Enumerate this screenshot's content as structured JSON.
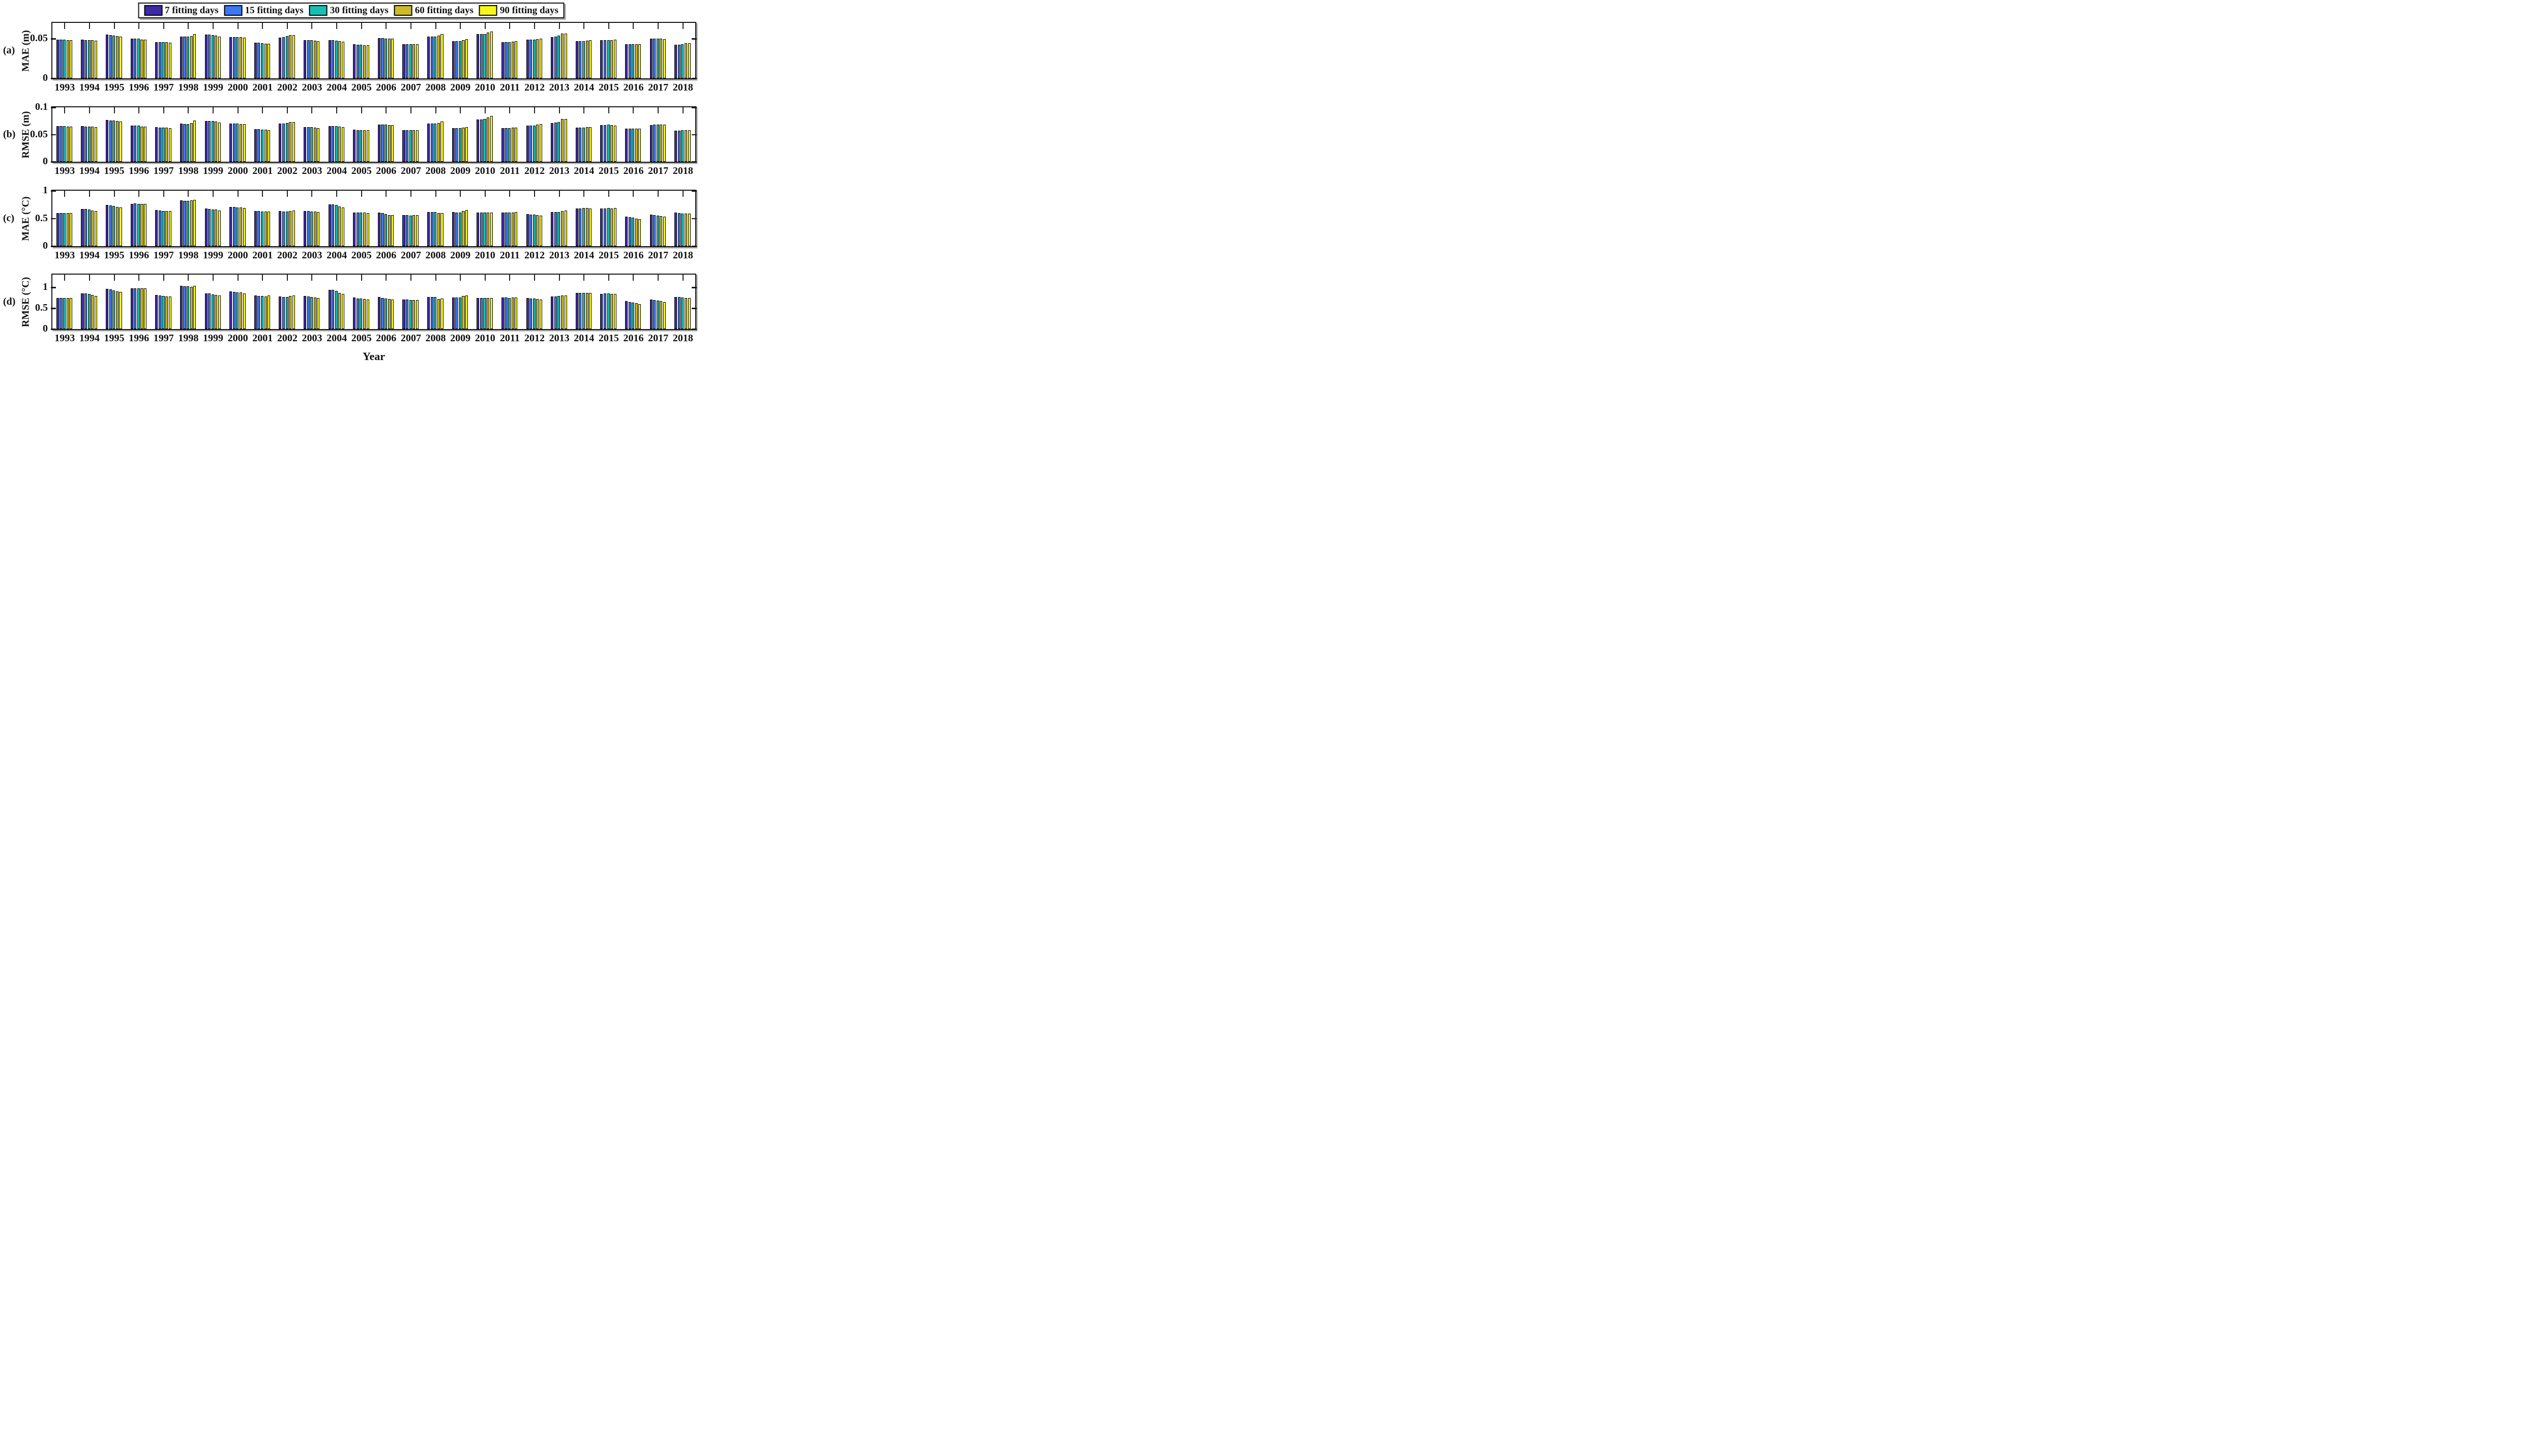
{
  "figure": {
    "xlabel": "Year"
  },
  "legend": {
    "items": [
      {
        "label": "7 fitting days",
        "color": "#3e2ba6"
      },
      {
        "label": "15 fitting days",
        "color": "#3b78f2"
      },
      {
        "label": "30 fitting days",
        "color": "#18bfb4"
      },
      {
        "label": "60 fitting days",
        "color": "#cdbb2a"
      },
      {
        "label": "90 fitting days",
        "color": "#f6f618"
      }
    ]
  },
  "panels": [
    {
      "tag": "(a)",
      "ylabel": "MAE (m)",
      "yticks": [
        {
          "value": 0,
          "label": "0"
        },
        {
          "value": 0.05,
          "label": "0.05"
        }
      ]
    },
    {
      "tag": "(b)",
      "ylabel": "RMSE (m)",
      "yticks": [
        {
          "value": 0,
          "label": "0"
        },
        {
          "value": 0.05,
          "label": "0.05"
        },
        {
          "value": 0.1,
          "label": "0.1"
        }
      ]
    },
    {
      "tag": "(c)",
      "ylabel": "MAE (°C)",
      "yticks": [
        {
          "value": 0,
          "label": "0"
        },
        {
          "value": 0.5,
          "label": "0.5"
        },
        {
          "value": 1,
          "label": "1"
        }
      ]
    },
    {
      "tag": "(d)",
      "ylabel": "RMSE (°C)",
      "yticks": [
        {
          "value": 0,
          "label": "0"
        },
        {
          "value": 0.5,
          "label": "0.5"
        },
        {
          "value": 1,
          "label": "1"
        }
      ]
    }
  ],
  "chart_data": [
    {
      "type": "bar",
      "panel": "(a)",
      "ylabel": "MAE (m)",
      "xlabel": "Year",
      "ylim": [
        0,
        0.07
      ],
      "grid": false,
      "legend_position": "top",
      "categories": [
        1993,
        1994,
        1995,
        1996,
        1997,
        1998,
        1999,
        2000,
        2001,
        2002,
        2003,
        2004,
        2005,
        2006,
        2007,
        2008,
        2009,
        2010,
        2011,
        2012,
        2013,
        2014,
        2015,
        2016,
        2017,
        2018
      ],
      "series": [
        {
          "name": "7 fitting days",
          "values": [
            0.049,
            0.0486,
            0.055,
            0.0502,
            0.0459,
            0.0524,
            0.0553,
            0.0521,
            0.0452,
            0.0513,
            0.0482,
            0.0482,
            0.043,
            0.0505,
            0.043,
            0.0524,
            0.0466,
            0.0557,
            0.0453,
            0.049,
            0.0521,
            0.047,
            0.048,
            0.0433,
            0.0503,
            0.0421
          ]
        },
        {
          "name": "15 fitting days",
          "values": [
            0.0488,
            0.0484,
            0.0545,
            0.05,
            0.0456,
            0.0524,
            0.0552,
            0.052,
            0.0449,
            0.0517,
            0.0481,
            0.0484,
            0.0424,
            0.0505,
            0.043,
            0.0525,
            0.0469,
            0.0558,
            0.0455,
            0.049,
            0.0528,
            0.047,
            0.0481,
            0.0432,
            0.0503,
            0.0423
          ]
        },
        {
          "name": "30 fitting days",
          "values": [
            0.0486,
            0.0483,
            0.0539,
            0.0498,
            0.0455,
            0.0526,
            0.0549,
            0.0519,
            0.0444,
            0.0533,
            0.0479,
            0.0476,
            0.0421,
            0.0503,
            0.0428,
            0.0527,
            0.0472,
            0.056,
            0.0458,
            0.0491,
            0.054,
            0.0472,
            0.0483,
            0.0432,
            0.0503,
            0.043
          ]
        },
        {
          "name": "60 fitting days",
          "values": [
            0.0484,
            0.0482,
            0.0531,
            0.049,
            0.0454,
            0.0532,
            0.0537,
            0.0518,
            0.0439,
            0.0547,
            0.0476,
            0.0468,
            0.0419,
            0.05,
            0.043,
            0.0537,
            0.0481,
            0.0578,
            0.0464,
            0.0495,
            0.0565,
            0.0478,
            0.0483,
            0.043,
            0.05,
            0.044
          ]
        },
        {
          "name": "90 fitting days",
          "values": [
            0.0484,
            0.0476,
            0.0524,
            0.0486,
            0.0451,
            0.0558,
            0.0528,
            0.0516,
            0.0435,
            0.0548,
            0.0472,
            0.0462,
            0.0417,
            0.05,
            0.0432,
            0.0556,
            0.0497,
            0.059,
            0.0471,
            0.05,
            0.0568,
            0.048,
            0.0485,
            0.043,
            0.0497,
            0.0445
          ]
        }
      ]
    },
    {
      "type": "bar",
      "panel": "(b)",
      "ylabel": "RMSE (m)",
      "xlabel": "Year",
      "ylim": [
        0,
        0.1
      ],
      "grid": false,
      "legend_position": "top",
      "categories": [
        1993,
        1994,
        1995,
        1996,
        1997,
        1998,
        1999,
        2000,
        2001,
        2002,
        2003,
        2004,
        2005,
        2006,
        2007,
        2008,
        2009,
        2010,
        2011,
        2012,
        2013,
        2014,
        2015,
        2016,
        2017,
        2018
      ],
      "series": [
        {
          "name": "7 fitting days",
          "values": [
            0.0655,
            0.065,
            0.0771,
            0.0668,
            0.0634,
            0.0697,
            0.0752,
            0.0702,
            0.0601,
            0.0699,
            0.0639,
            0.0655,
            0.0585,
            0.0681,
            0.0579,
            0.0701,
            0.0616,
            0.0779,
            0.0616,
            0.0666,
            0.0714,
            0.0626,
            0.0676,
            0.0605,
            0.0677,
            0.0566
          ]
        },
        {
          "name": "15 fitting days",
          "values": [
            0.0652,
            0.0648,
            0.0761,
            0.0665,
            0.0629,
            0.0696,
            0.075,
            0.07,
            0.0598,
            0.07,
            0.0638,
            0.0653,
            0.0581,
            0.068,
            0.0579,
            0.0702,
            0.0616,
            0.0778,
            0.0617,
            0.0666,
            0.0718,
            0.0628,
            0.0677,
            0.0606,
            0.0678,
            0.0568
          ]
        },
        {
          "name": "30 fitting days",
          "values": [
            0.065,
            0.0646,
            0.0753,
            0.0661,
            0.0627,
            0.0696,
            0.0748,
            0.0698,
            0.0593,
            0.0711,
            0.0635,
            0.065,
            0.0579,
            0.0678,
            0.0578,
            0.0704,
            0.0618,
            0.0781,
            0.0619,
            0.0664,
            0.0733,
            0.0629,
            0.0678,
            0.0606,
            0.0679,
            0.0578
          ]
        },
        {
          "name": "60 fitting days",
          "values": [
            0.0647,
            0.0644,
            0.0747,
            0.0646,
            0.0625,
            0.0709,
            0.0734,
            0.0694,
            0.0586,
            0.0733,
            0.0628,
            0.0641,
            0.0579,
            0.0676,
            0.058,
            0.0711,
            0.0628,
            0.0812,
            0.0622,
            0.0679,
            0.0782,
            0.0634,
            0.0671,
            0.0605,
            0.0681,
            0.0582
          ]
        },
        {
          "name": "90 fitting days",
          "values": [
            0.0647,
            0.0632,
            0.0742,
            0.0641,
            0.0619,
            0.0755,
            0.0719,
            0.0688,
            0.0577,
            0.0727,
            0.0621,
            0.0631,
            0.0581,
            0.0676,
            0.0581,
            0.0735,
            0.0638,
            0.0844,
            0.0626,
            0.0689,
            0.0786,
            0.0638,
            0.0662,
            0.0607,
            0.0684,
            0.0584
          ]
        }
      ]
    },
    {
      "type": "bar",
      "panel": "(c)",
      "ylabel": "MAE (°C)",
      "xlabel": "Year",
      "ylim": [
        0,
        1.0
      ],
      "grid": false,
      "legend_position": "top",
      "categories": [
        1993,
        1994,
        1995,
        1996,
        1997,
        1998,
        1999,
        2000,
        2001,
        2002,
        2003,
        2004,
        2005,
        2006,
        2007,
        2008,
        2009,
        2010,
        2011,
        2012,
        2013,
        2014,
        2015,
        2016,
        2017,
        2018
      ],
      "series": [
        {
          "name": "7 fitting days",
          "values": [
            0.596,
            0.672,
            0.743,
            0.766,
            0.652,
            0.822,
            0.68,
            0.706,
            0.633,
            0.63,
            0.637,
            0.751,
            0.61,
            0.608,
            0.558,
            0.615,
            0.612,
            0.604,
            0.607,
            0.578,
            0.611,
            0.679,
            0.676,
            0.533,
            0.567,
            0.602
          ]
        },
        {
          "name": "15 fitting days",
          "values": [
            0.594,
            0.668,
            0.732,
            0.769,
            0.641,
            0.82,
            0.672,
            0.702,
            0.629,
            0.628,
            0.633,
            0.752,
            0.607,
            0.592,
            0.556,
            0.614,
            0.61,
            0.602,
            0.605,
            0.572,
            0.615,
            0.683,
            0.68,
            0.525,
            0.556,
            0.598
          ]
        },
        {
          "name": "30 fitting days",
          "values": [
            0.593,
            0.662,
            0.721,
            0.761,
            0.637,
            0.819,
            0.665,
            0.699,
            0.624,
            0.628,
            0.627,
            0.74,
            0.603,
            0.578,
            0.555,
            0.613,
            0.609,
            0.601,
            0.604,
            0.567,
            0.618,
            0.687,
            0.684,
            0.514,
            0.549,
            0.591
          ]
        },
        {
          "name": "60 fitting days",
          "values": [
            0.592,
            0.645,
            0.705,
            0.762,
            0.637,
            0.822,
            0.657,
            0.695,
            0.622,
            0.633,
            0.622,
            0.718,
            0.602,
            0.563,
            0.556,
            0.592,
            0.637,
            0.602,
            0.606,
            0.56,
            0.637,
            0.684,
            0.68,
            0.499,
            0.54,
            0.584
          ]
        },
        {
          "name": "90 fitting days",
          "values": [
            0.593,
            0.635,
            0.695,
            0.758,
            0.634,
            0.837,
            0.645,
            0.691,
            0.62,
            0.642,
            0.619,
            0.695,
            0.6,
            0.561,
            0.561,
            0.598,
            0.655,
            0.603,
            0.612,
            0.549,
            0.645,
            0.683,
            0.687,
            0.484,
            0.535,
            0.584
          ]
        }
      ]
    },
    {
      "type": "bar",
      "panel": "(d)",
      "ylabel": "RMSE (°C)",
      "xlabel": "Year",
      "ylim": [
        0,
        1.31
      ],
      "grid": false,
      "legend_position": "top",
      "categories": [
        1993,
        1994,
        1995,
        1996,
        1997,
        1998,
        1999,
        2000,
        2001,
        2002,
        2003,
        2004,
        2005,
        2006,
        2007,
        2008,
        2009,
        2010,
        2011,
        2012,
        2013,
        2014,
        2015,
        2016,
        2017,
        2018
      ],
      "series": [
        {
          "name": "7 fitting days",
          "values": [
            0.75,
            0.862,
            0.965,
            0.975,
            0.822,
            1.035,
            0.862,
            0.901,
            0.805,
            0.78,
            0.793,
            0.947,
            0.757,
            0.77,
            0.708,
            0.767,
            0.758,
            0.751,
            0.755,
            0.747,
            0.78,
            0.869,
            0.85,
            0.668,
            0.712,
            0.771
          ]
        },
        {
          "name": "15 fitting days",
          "values": [
            0.748,
            0.852,
            0.951,
            0.979,
            0.802,
            1.03,
            0.852,
            0.896,
            0.798,
            0.776,
            0.779,
            0.94,
            0.738,
            0.75,
            0.706,
            0.766,
            0.757,
            0.75,
            0.754,
            0.738,
            0.785,
            0.873,
            0.852,
            0.654,
            0.698,
            0.767
          ]
        },
        {
          "name": "30 fitting days",
          "values": [
            0.747,
            0.842,
            0.926,
            0.979,
            0.792,
            1.025,
            0.837,
            0.886,
            0.79,
            0.776,
            0.77,
            0.92,
            0.732,
            0.735,
            0.703,
            0.768,
            0.756,
            0.748,
            0.752,
            0.729,
            0.793,
            0.875,
            0.854,
            0.639,
            0.683,
            0.757
          ]
        },
        {
          "name": "60 fitting days",
          "values": [
            0.747,
            0.822,
            0.906,
            0.975,
            0.787,
            1.021,
            0.822,
            0.881,
            0.783,
            0.79,
            0.757,
            0.87,
            0.727,
            0.722,
            0.698,
            0.728,
            0.795,
            0.748,
            0.754,
            0.719,
            0.803,
            0.872,
            0.847,
            0.62,
            0.668,
            0.747
          ]
        },
        {
          "name": "90 fitting days",
          "values": [
            0.748,
            0.798,
            0.892,
            0.975,
            0.78,
            1.045,
            0.812,
            0.862,
            0.81,
            0.802,
            0.749,
            0.842,
            0.715,
            0.715,
            0.693,
            0.733,
            0.814,
            0.746,
            0.757,
            0.709,
            0.808,
            0.864,
            0.84,
            0.595,
            0.654,
            0.744
          ]
        }
      ]
    }
  ]
}
